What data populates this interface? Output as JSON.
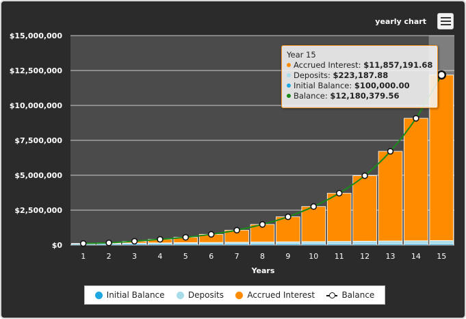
{
  "header": {
    "title": "yearly chart",
    "menu_icon": "hamburger-menu-icon"
  },
  "chart_data": {
    "type": "bar",
    "stacked": true,
    "xlabel": "Years",
    "categories": [
      "1",
      "2",
      "3",
      "4",
      "5",
      "6",
      "7",
      "8",
      "9",
      "10",
      "11",
      "12",
      "13",
      "14",
      "15"
    ],
    "ylim": [
      0,
      15000000
    ],
    "yticks": [
      "$0",
      "$2,500,000",
      "$5,000,000",
      "$7,500,000",
      "$10,000,000",
      "$12,500,000",
      "$15,000,000"
    ],
    "grid": true,
    "legend_position": "bottom",
    "colors": {
      "initial": "#1ea7e1",
      "deposits": "#a8dce8",
      "interest": "#ff8c00",
      "balance_line": "#1a8a1a",
      "plot_bg": "#4b4b4b",
      "highlight": "#8f8f8f"
    },
    "series": [
      {
        "name": "Initial Balance",
        "values": [
          100000,
          100000,
          100000,
          100000,
          100000,
          100000,
          100000,
          100000,
          100000,
          100000,
          100000,
          100000,
          100000,
          100000,
          100000
        ]
      },
      {
        "name": "Deposits",
        "values": [
          14900,
          29800,
          44600,
          59500,
          74400,
          89300,
          104200,
          119000,
          133900,
          148800,
          163700,
          178600,
          193400,
          208300,
          223187.88
        ]
      },
      {
        "name": "Accrued Interest",
        "values": [
          0,
          30000,
          130000,
          250000,
          380000,
          580000,
          860000,
          1260000,
          1790000,
          2510000,
          3450000,
          4690000,
          6420000,
          8770000,
          11857191.68
        ]
      },
      {
        "name": "Balance",
        "type": "line",
        "values": [
          114900,
          159800,
          274600,
          409500,
          554400,
          769300,
          1064200,
          1479000,
          2023900,
          2758800,
          3713700,
          4968600,
          6713400,
          9078300,
          12180379.56
        ]
      }
    ],
    "highlight_index": 14
  },
  "tooltip": {
    "title": "Year 15",
    "rows": [
      {
        "label": "Accrued Interest: ",
        "value": "$11,857,191.68",
        "color": "#ff8c00"
      },
      {
        "label": "Deposits: ",
        "value": "$223,187.88",
        "color": "#a8dce8"
      },
      {
        "label": "Initial Balance: ",
        "value": "$100,000.00",
        "color": "#1ea7e1"
      },
      {
        "label": "Balance: ",
        "value": "$12,180,379.56",
        "color": "#1a8a1a"
      }
    ]
  },
  "legend": [
    {
      "label": "Initial Balance",
      "color": "#1ea7e1",
      "kind": "dot"
    },
    {
      "label": "Deposits",
      "color": "#a8dce8",
      "kind": "dot"
    },
    {
      "label": "Accrued Interest",
      "color": "#ff8c00",
      "kind": "dot"
    },
    {
      "label": "Balance",
      "color": "#111111",
      "kind": "line"
    }
  ]
}
